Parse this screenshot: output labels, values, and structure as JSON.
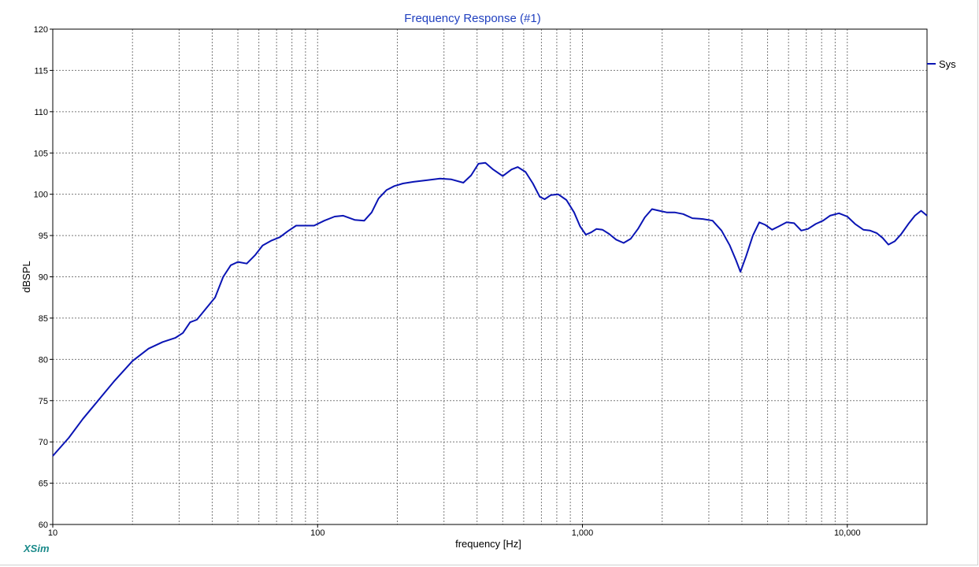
{
  "app_brand": "XSim",
  "chart_data": {
    "type": "line",
    "title": "Frequency Response (#1)",
    "xlabel": "frequency [Hz]",
    "ylabel": "dBSPL",
    "x_scale": "log",
    "xlim": [
      10,
      20000
    ],
    "ylim": [
      60,
      120
    ],
    "x_ticks": [
      {
        "value": 10,
        "label": "10"
      },
      {
        "value": 100,
        "label": "100"
      },
      {
        "value": 1000,
        "label": "1,000"
      },
      {
        "value": 10000,
        "label": "10,000"
      }
    ],
    "y_ticks": [
      {
        "value": 120,
        "label": "120"
      },
      {
        "value": 115,
        "label": "115"
      },
      {
        "value": 110,
        "label": "110"
      },
      {
        "value": 105,
        "label": "105"
      },
      {
        "value": 100,
        "label": "100"
      },
      {
        "value": 95,
        "label": "95"
      },
      {
        "value": 90,
        "label": "90"
      },
      {
        "value": 85,
        "label": "85"
      },
      {
        "value": 80,
        "label": "80"
      },
      {
        "value": 75,
        "label": "75"
      },
      {
        "value": 70,
        "label": "70"
      },
      {
        "value": 65,
        "label": "65"
      },
      {
        "value": 60,
        "label": "60"
      }
    ],
    "grid": true,
    "legend_position": "right",
    "series": [
      {
        "name": "Sys",
        "color": "#0a14b4",
        "points": [
          [
            10,
            68.3
          ],
          [
            11.5,
            70.5
          ],
          [
            13,
            72.8
          ],
          [
            15,
            75.2
          ],
          [
            17,
            77.3
          ],
          [
            20,
            79.8
          ],
          [
            23,
            81.3
          ],
          [
            26,
            82.1
          ],
          [
            29,
            82.6
          ],
          [
            31,
            83.2
          ],
          [
            33,
            84.5
          ],
          [
            35,
            84.8
          ],
          [
            38,
            86.2
          ],
          [
            41,
            87.5
          ],
          [
            44,
            90.0
          ],
          [
            47,
            91.4
          ],
          [
            50,
            91.8
          ],
          [
            54,
            91.6
          ],
          [
            58,
            92.6
          ],
          [
            62,
            93.8
          ],
          [
            67,
            94.4
          ],
          [
            72,
            94.8
          ],
          [
            77,
            95.5
          ],
          [
            83,
            96.2
          ],
          [
            90,
            96.2
          ],
          [
            97,
            96.2
          ],
          [
            106,
            96.8
          ],
          [
            116,
            97.3
          ],
          [
            125,
            97.4
          ],
          [
            138,
            96.9
          ],
          [
            150,
            96.8
          ],
          [
            160,
            97.8
          ],
          [
            170,
            99.5
          ],
          [
            182,
            100.5
          ],
          [
            195,
            101.0
          ],
          [
            210,
            101.3
          ],
          [
            230,
            101.5
          ],
          [
            260,
            101.7
          ],
          [
            290,
            101.9
          ],
          [
            320,
            101.8
          ],
          [
            355,
            101.4
          ],
          [
            380,
            102.3
          ],
          [
            405,
            103.7
          ],
          [
            430,
            103.8
          ],
          [
            460,
            103.0
          ],
          [
            500,
            102.2
          ],
          [
            540,
            103.0
          ],
          [
            570,
            103.3
          ],
          [
            610,
            102.7
          ],
          [
            650,
            101.3
          ],
          [
            690,
            99.7
          ],
          [
            720,
            99.4
          ],
          [
            760,
            99.9
          ],
          [
            810,
            100.0
          ],
          [
            870,
            99.3
          ],
          [
            930,
            97.8
          ],
          [
            980,
            96.1
          ],
          [
            1030,
            95.1
          ],
          [
            1080,
            95.4
          ],
          [
            1130,
            95.8
          ],
          [
            1190,
            95.7
          ],
          [
            1260,
            95.2
          ],
          [
            1340,
            94.5
          ],
          [
            1430,
            94.1
          ],
          [
            1520,
            94.6
          ],
          [
            1620,
            95.8
          ],
          [
            1720,
            97.2
          ],
          [
            1830,
            98.2
          ],
          [
            1950,
            98.0
          ],
          [
            2080,
            97.8
          ],
          [
            2230,
            97.8
          ],
          [
            2400,
            97.6
          ],
          [
            2600,
            97.1
          ],
          [
            2850,
            97.0
          ],
          [
            3100,
            96.8
          ],
          [
            3350,
            95.6
          ],
          [
            3600,
            93.8
          ],
          [
            3800,
            92.0
          ],
          [
            3950,
            90.6
          ],
          [
            4150,
            92.5
          ],
          [
            4400,
            95.0
          ],
          [
            4650,
            96.6
          ],
          [
            4900,
            96.3
          ],
          [
            5200,
            95.7
          ],
          [
            5500,
            96.1
          ],
          [
            5900,
            96.6
          ],
          [
            6300,
            96.5
          ],
          [
            6700,
            95.6
          ],
          [
            7100,
            95.8
          ],
          [
            7600,
            96.4
          ],
          [
            8100,
            96.8
          ],
          [
            8600,
            97.4
          ],
          [
            9300,
            97.7
          ],
          [
            10000,
            97.3
          ],
          [
            10700,
            96.4
          ],
          [
            11500,
            95.7
          ],
          [
            12200,
            95.6
          ],
          [
            12900,
            95.3
          ],
          [
            13600,
            94.7
          ],
          [
            14300,
            93.9
          ],
          [
            15100,
            94.3
          ],
          [
            16000,
            95.2
          ],
          [
            17000,
            96.4
          ],
          [
            18000,
            97.4
          ],
          [
            19000,
            98.0
          ],
          [
            20000,
            97.4
          ]
        ]
      }
    ]
  }
}
